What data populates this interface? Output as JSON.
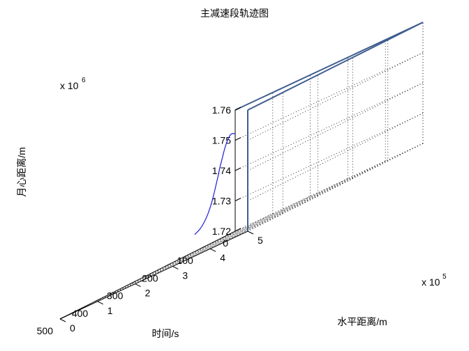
{
  "chart_data": {
    "type": "line",
    "dimensions": "3d",
    "title": "主减速段轨迹图",
    "xlabel": "时间/s",
    "ylabel": "水平距离/m",
    "zlabel": "月心距离/m",
    "x_ticks": [
      "0",
      "100",
      "200",
      "300",
      "400",
      "500"
    ],
    "y_ticks": [
      "0",
      "1",
      "2",
      "3",
      "4",
      "5"
    ],
    "z_ticks": [
      "1.72",
      "1.73",
      "1.74",
      "1.75",
      "1.76"
    ],
    "y_exponent": {
      "base": "x 10",
      "power": "5"
    },
    "z_exponent": {
      "base": "x 10",
      "power": "6"
    },
    "xlim": [
      0,
      500
    ],
    "ylim": [
      0,
      500000
    ],
    "zlim": [
      1720000,
      1760000
    ],
    "grid": true,
    "series": [
      {
        "color": "#1f1fd6",
        "x": [
          0,
          30,
          60,
          90,
          120,
          150,
          180,
          210,
          240,
          270,
          300,
          330,
          360,
          390,
          420,
          450,
          480
        ],
        "y": [
          0,
          23000,
          46000,
          69000,
          92000,
          115000,
          138000,
          161000,
          183000,
          206000,
          228000,
          250000,
          271000,
          291000,
          310000,
          327000,
          340000
        ],
        "z": [
          1752000,
          1752700,
          1752900,
          1752600,
          1751800,
          1750500,
          1748800,
          1746700,
          1744300,
          1741700,
          1739000,
          1736300,
          1733700,
          1731400,
          1729500,
          1728000,
          1727000
        ]
      }
    ]
  }
}
